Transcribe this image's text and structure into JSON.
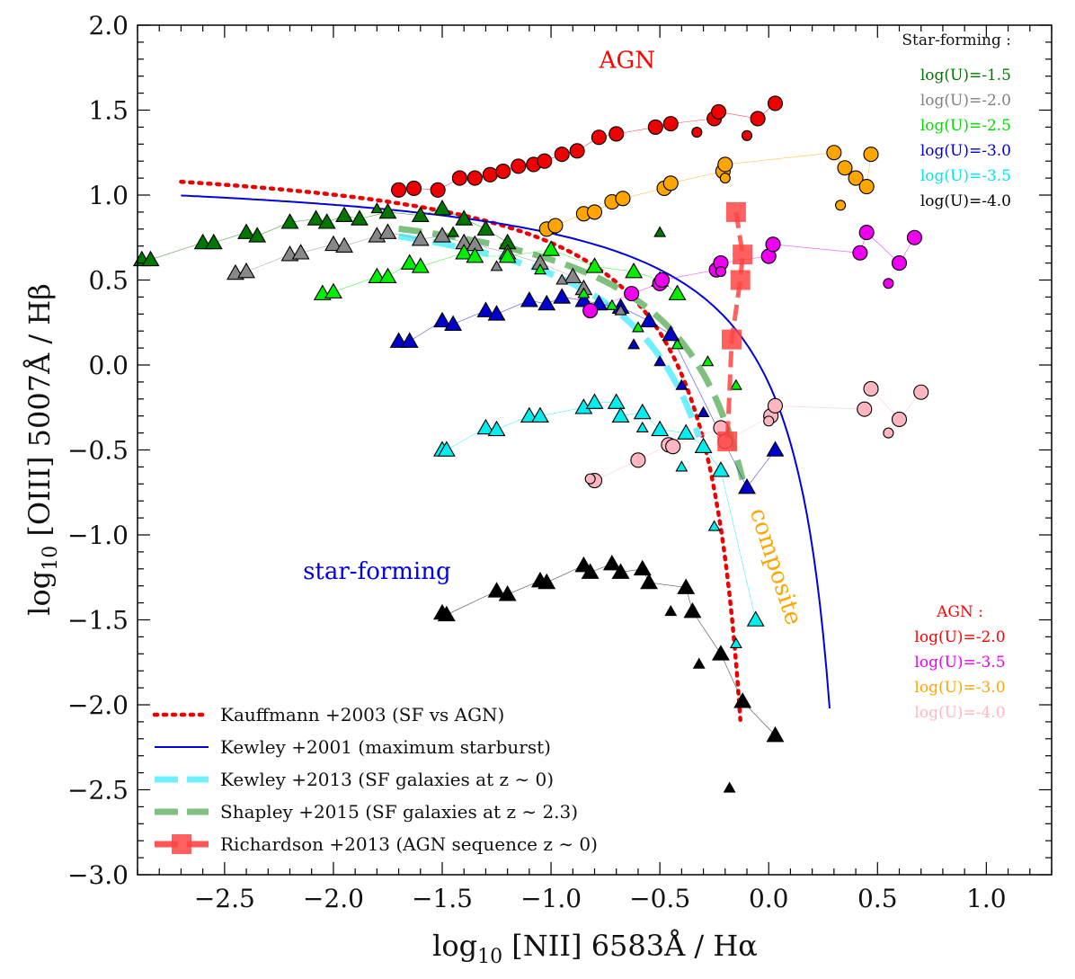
{
  "chart_data": {
    "type": "scatter",
    "title": "",
    "xlabel": "log10 [NII] 6583Å / Hα",
    "ylabel": "log10 [OIII] 5007Å / Hβ",
    "xlim": [
      -2.9,
      1.3
    ],
    "ylim": [
      -3.0,
      2.0
    ],
    "x_ticks": [
      -2.5,
      -2.0,
      -1.5,
      -1.0,
      -0.5,
      0.0,
      0.5,
      1.0
    ],
    "x_tick_labels": [
      "−2.5",
      "−2.0",
      "−1.5",
      "−1.0",
      "−0.5",
      "0.0",
      "0.5",
      "1.0"
    ],
    "y_ticks": [
      2.0,
      1.5,
      1.0,
      0.5,
      0.0,
      -0.5,
      -1.0,
      -1.5,
      -2.0,
      -2.5,
      -3.0
    ],
    "y_tick_labels": [
      "2.0",
      "1.5",
      "1.0",
      "0.5",
      "0.0",
      "−0.5",
      "−1.0",
      "−1.5",
      "−2.0",
      "−2.5",
      "−3.0"
    ],
    "annotations": [
      {
        "text": "AGN",
        "x": -0.65,
        "y": 1.75,
        "color": "#ff0000"
      },
      {
        "text": "star-forming",
        "x": -1.8,
        "y": -1.26,
        "color": "#0000e0"
      },
      {
        "text": "composite",
        "x": 0.0,
        "y": -1.2,
        "color": "#ffa500",
        "rotate": 72
      }
    ],
    "sf_legend": {
      "title": "Star-forming :",
      "entries": [
        {
          "label": "log(U)=-1.5",
          "color": "#007700"
        },
        {
          "label": "log(U)=-2.0",
          "color": "#808080"
        },
        {
          "label": "log(U)=-2.5",
          "color": "#00dd00"
        },
        {
          "label": "log(U)=-3.0",
          "color": "#0000cc"
        },
        {
          "label": "log(U)=-3.5",
          "color": "#00e5ee"
        },
        {
          "label": "log(U)=-4.0",
          "color": "#000000"
        }
      ]
    },
    "agn_legend": {
      "title": "AGN :",
      "entries": [
        {
          "label": "log(U)=-2.0",
          "color": "#ff0000"
        },
        {
          "label": "log(U)=-3.5",
          "color": "#ee00ee"
        },
        {
          "label": "log(U)=-3.0",
          "color": "#ffa500"
        },
        {
          "label": "log(U)=-4.0",
          "color": "#ffb6c1"
        }
      ]
    },
    "line_legend": [
      {
        "label": "Kauffmann +2003 (SF vs AGN)",
        "color": "#ee0000",
        "style": "dotted"
      },
      {
        "label": "Kewley +2001 (maximum starburst)",
        "color": "#0000dd",
        "style": "solid"
      },
      {
        "label": "Kewley +2013 (SF galaxies at z ∼ 0)",
        "color": "#6ff0ff",
        "style": "dashed"
      },
      {
        "label": "Shapley +2015 (SF galaxies at z ∼ 2.3)",
        "color": "#7fbf7f",
        "style": "dashed"
      },
      {
        "label": "Richardson +2013 (AGN sequence z ∼ 0)",
        "color": "#ff5555",
        "style": "dashed-square"
      }
    ],
    "curves": [
      {
        "name": "Kauffmann +2003",
        "formula": "0.61/(x-0.05)+1.3",
        "x_range": [
          -2.7,
          -0.13
        ]
      },
      {
        "name": "Kewley +2001",
        "formula": "0.61/(x-0.47)+1.19",
        "x_range": [
          -2.7,
          0.28
        ]
      },
      {
        "name": "Kewley +2013",
        "formula": "0.61/(x-0.08)+1.1",
        "x_range": [
          -1.7,
          -0.32
        ]
      },
      {
        "name": "Shapley +2015",
        "formula": "0.61/(x-0.22)+1.12",
        "x_range": [
          -1.7,
          -0.12
        ]
      }
    ],
    "richardson_points": {
      "x": [
        -0.15,
        -0.12,
        -0.13,
        -0.17,
        -0.19
      ],
      "y": [
        0.9,
        0.65,
        0.5,
        0.15,
        -0.45
      ]
    },
    "series": [
      {
        "name": "SF log(U)=-1.5",
        "marker": "triangle",
        "color": "#007700",
        "size": "large",
        "x": [
          -2.88,
          -2.84,
          -2.6,
          -2.55,
          -2.4,
          -2.35,
          -2.2,
          -2.08,
          -2.03,
          -1.95,
          -1.88,
          -1.75,
          -1.6,
          -1.5,
          -1.4,
          -1.3,
          -1.2
        ],
        "y": [
          0.62,
          0.62,
          0.72,
          0.72,
          0.78,
          0.76,
          0.84,
          0.86,
          0.84,
          0.88,
          0.86,
          0.9,
          0.88,
          0.92,
          0.86,
          0.8,
          0.72
        ]
      },
      {
        "name": "SF log(U)=-2.0",
        "marker": "triangle",
        "color": "#888888",
        "size": "large",
        "x": [
          -2.45,
          -2.4,
          -2.2,
          -2.15,
          -2.0,
          -1.95,
          -1.8,
          -1.75,
          -1.6,
          -1.5,
          -1.4,
          -1.35,
          -1.2,
          -1.05,
          -0.9,
          -0.85
        ],
        "y": [
          0.54,
          0.55,
          0.65,
          0.66,
          0.71,
          0.7,
          0.76,
          0.78,
          0.74,
          0.76,
          0.72,
          0.71,
          0.66,
          0.6,
          0.52,
          0.45
        ]
      },
      {
        "name": "SF log(U)=-2.5",
        "marker": "triangle",
        "color": "#00ee00",
        "size": "large",
        "x": [
          -2.05,
          -2.0,
          -1.8,
          -1.75,
          -1.65,
          -1.6,
          -1.4,
          -1.35,
          -1.2,
          -1.0,
          -0.8,
          -0.62,
          -0.5,
          -0.42
        ],
        "y": [
          0.42,
          0.43,
          0.52,
          0.52,
          0.6,
          0.58,
          0.66,
          0.64,
          0.64,
          0.68,
          0.58,
          0.55,
          0.5,
          0.42
        ]
      },
      {
        "name": "SF log(U)=-3.0",
        "marker": "triangle",
        "color": "#0000cc",
        "size": "large",
        "x": [
          -1.7,
          -1.65,
          -1.5,
          -1.45,
          -1.3,
          -1.25,
          -1.1,
          -1.02,
          -0.95,
          -0.85,
          -0.78,
          -0.68,
          -0.55,
          -0.45,
          -0.1,
          0.03
        ],
        "y": [
          0.14,
          0.14,
          0.26,
          0.24,
          0.32,
          0.3,
          0.38,
          0.36,
          0.4,
          0.38,
          0.36,
          0.34,
          0.26,
          0.18,
          -0.72,
          -0.5
        ]
      },
      {
        "name": "SF log(U)=-3.5",
        "marker": "triangle",
        "color": "#00eeee",
        "size": "large",
        "x": [
          -1.5,
          -1.48,
          -1.3,
          -1.25,
          -1.1,
          -1.05,
          -0.85,
          -0.8,
          -0.7,
          -0.68,
          -0.58,
          -0.5,
          -0.38,
          -0.3,
          -0.22,
          -0.06
        ],
        "y": [
          -0.5,
          -0.5,
          -0.37,
          -0.38,
          -0.3,
          -0.3,
          -0.25,
          -0.22,
          -0.22,
          -0.3,
          -0.28,
          -0.38,
          -0.4,
          -0.48,
          -0.62,
          -1.5
        ]
      },
      {
        "name": "SF log(U)=-4.0",
        "marker": "triangle",
        "color": "#000000",
        "size": "large",
        "x": [
          -1.5,
          -1.48,
          -1.25,
          -1.2,
          -1.05,
          -1.02,
          -0.85,
          -0.82,
          -0.72,
          -0.68,
          -0.58,
          -0.55,
          -0.38,
          -0.35,
          -0.22,
          -0.12,
          0.03
        ],
        "y": [
          -1.46,
          -1.47,
          -1.33,
          -1.35,
          -1.27,
          -1.28,
          -1.18,
          -1.22,
          -1.17,
          -1.22,
          -1.2,
          -1.28,
          -1.31,
          -1.45,
          -1.7,
          -1.98,
          -2.18
        ]
      },
      {
        "name": "SF log(U)=-1.5 (small)",
        "marker": "triangle",
        "color": "#007700",
        "size": "small",
        "x": [
          -1.8,
          -1.45,
          -1.0,
          -0.5
        ],
        "y": [
          0.92,
          0.78,
          0.8,
          0.78
        ]
      },
      {
        "name": "SF log(U)=-2.0 (small)",
        "marker": "triangle",
        "color": "#888888",
        "size": "small",
        "x": [
          -1.25,
          -0.95,
          -0.68
        ],
        "y": [
          0.58,
          0.5,
          0.32
        ]
      },
      {
        "name": "SF log(U)=-2.5 (small)",
        "marker": "triangle",
        "color": "#00ee00",
        "size": "small",
        "x": [
          -1.05,
          -0.85,
          -0.72,
          -0.6,
          -0.42,
          -0.28,
          -0.15
        ],
        "y": [
          0.56,
          0.42,
          0.35,
          0.22,
          0.12,
          0.02,
          -0.12
        ]
      },
      {
        "name": "SF log(U)=-3.0 (small)",
        "marker": "triangle",
        "color": "#0000cc",
        "size": "small",
        "x": [
          -0.62,
          -0.5,
          -0.4,
          -0.3,
          -0.2
        ],
        "y": [
          0.12,
          0.02,
          -0.12,
          -0.28,
          -0.4
        ]
      },
      {
        "name": "SF log(U)=-3.5 (small)",
        "marker": "triangle",
        "color": "#00eeee",
        "size": "small",
        "x": [
          -0.58,
          -0.4,
          -0.25,
          -0.15
        ],
        "y": [
          -0.37,
          -0.6,
          -0.95,
          -1.64
        ]
      },
      {
        "name": "SF log(U)=-4.0 (small)",
        "marker": "triangle",
        "color": "#000000",
        "size": "small",
        "x": [
          -0.45,
          -0.32,
          -0.18
        ],
        "y": [
          -1.45,
          -1.76,
          -2.49
        ]
      },
      {
        "name": "AGN log(U)=-2.0",
        "marker": "circle",
        "color": "#ee0000",
        "size": "large",
        "x": [
          -1.7,
          -1.63,
          -1.52,
          -1.42,
          -1.35,
          -1.28,
          -1.22,
          -1.15,
          -1.08,
          -1.03,
          -0.95,
          -0.88,
          -0.78,
          -0.7,
          -0.52,
          -0.45,
          -0.25,
          -0.23,
          -0.05,
          0.03
        ],
        "y": [
          1.03,
          1.04,
          1.03,
          1.1,
          1.1,
          1.12,
          1.14,
          1.17,
          1.18,
          1.2,
          1.24,
          1.26,
          1.34,
          1.36,
          1.4,
          1.42,
          1.45,
          1.49,
          1.45,
          1.54
        ]
      },
      {
        "name": "AGN log(U)=-3.0",
        "marker": "circle",
        "color": "#ffa500",
        "size": "large",
        "x": [
          -1.02,
          -0.98,
          -0.85,
          -0.8,
          -0.72,
          -0.67,
          -0.48,
          -0.45,
          -0.21,
          -0.2,
          0.3,
          0.35,
          0.4,
          0.45,
          0.47
        ],
        "y": [
          0.8,
          0.82,
          0.89,
          0.9,
          0.96,
          0.98,
          1.04,
          1.07,
          1.14,
          1.18,
          1.25,
          1.16,
          1.1,
          1.05,
          1.24
        ]
      },
      {
        "name": "AGN log(U)=-3.5",
        "marker": "circle",
        "color": "#ee00ee",
        "size": "large",
        "x": [
          -0.82,
          -0.63,
          -0.5,
          -0.49,
          -0.24,
          -0.22,
          0.0,
          0.02,
          0.42,
          0.45,
          0.6,
          0.67
        ],
        "y": [
          0.32,
          0.42,
          0.48,
          0.5,
          0.56,
          0.6,
          0.64,
          0.71,
          0.66,
          0.78,
          0.6,
          0.75
        ]
      },
      {
        "name": "AGN log(U)=-4.0",
        "marker": "circle",
        "color": "#ffb6c1",
        "size": "large",
        "x": [
          -0.8,
          -0.6,
          -0.46,
          -0.44,
          -0.22,
          -0.2,
          0.01,
          0.03,
          0.44,
          0.47,
          0.6,
          0.7
        ],
        "y": [
          -0.68,
          -0.56,
          -0.47,
          -0.48,
          -0.37,
          -0.45,
          -0.3,
          -0.24,
          -0.26,
          -0.14,
          -0.32,
          -0.16
        ]
      },
      {
        "name": "AGN log(U)=-2.0 (small)",
        "marker": "circle",
        "color": "#ee0000",
        "size": "small",
        "x": [
          -0.33,
          -0.1
        ],
        "y": [
          1.37,
          1.35
        ]
      },
      {
        "name": "AGN log(U)=-3.0 (small)",
        "marker": "circle",
        "color": "#ffa500",
        "size": "small",
        "x": [
          -0.2,
          0.33
        ],
        "y": [
          1.1,
          0.94
        ]
      },
      {
        "name": "AGN log(U)=-3.5 (small)",
        "marker": "circle",
        "color": "#ee00ee",
        "size": "small",
        "x": [
          -0.22,
          0.55
        ],
        "y": [
          0.55,
          0.48
        ]
      },
      {
        "name": "AGN log(U)=-4.0 (small)",
        "marker": "circle",
        "color": "#ffb6c1",
        "size": "small",
        "x": [
          -0.82,
          0.0,
          0.55
        ],
        "y": [
          -0.67,
          -0.33,
          -0.4
        ]
      }
    ]
  }
}
